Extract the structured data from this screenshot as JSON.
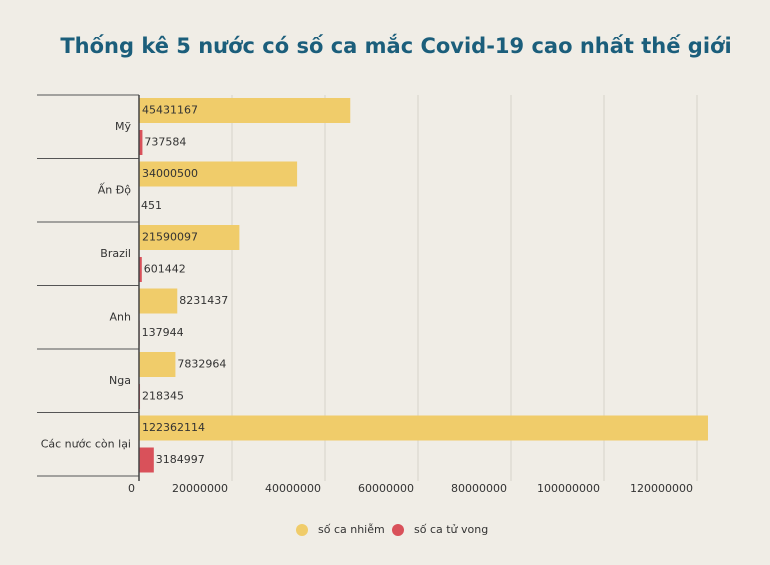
{
  "chart_data": {
    "type": "hbar",
    "title": "Thống kê 5 nước có số ca mắc Covid-19 cao nhất thế giới",
    "categories": [
      "Mỹ",
      "Ấn Độ",
      "Brazil",
      "Anh",
      "Nga",
      "Các nước còn lại"
    ],
    "series": [
      {
        "name": "số ca nhiễm",
        "color": "#f0cc6a",
        "values": [
          45431167,
          34000500,
          21590097,
          8231437,
          7832964,
          122362114
        ]
      },
      {
        "name": "số ca tử vong",
        "color": "#d9515a",
        "values": [
          737584,
          451,
          601442,
          137944,
          218345,
          3184997
        ]
      }
    ],
    "xlim": [
      0,
      130000000
    ],
    "xticks": [
      0,
      20000000,
      40000000,
      60000000,
      80000000,
      100000000,
      120000000
    ],
    "grid": true,
    "legend": "bottom"
  }
}
